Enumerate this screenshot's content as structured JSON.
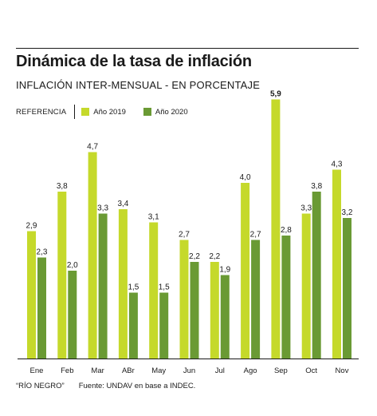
{
  "title": "Dinámica de la tasa de inflación",
  "subtitle": "INFLACIÓN INTER-MENSUAL - EN PORCENTAJE",
  "legend": {
    "reference_label": "REFERENCIA",
    "items": [
      {
        "label": "Año 2019",
        "color": "#c5d92b"
      },
      {
        "label": "Año 2020",
        "color": "#6a9a34"
      }
    ]
  },
  "footer": {
    "credit": "“RÍO NEGRO”",
    "source": "Fuente: UNDAV en base a INDEC."
  },
  "chart_data": {
    "type": "bar",
    "categories": [
      "Ene",
      "Feb",
      "Mar",
      "ABr",
      "May",
      "Jun",
      "Jul",
      "Ago",
      "Sep",
      "Oct",
      "Nov"
    ],
    "series": [
      {
        "name": "Año 2019",
        "color": "#c5d92b",
        "values": [
          2.9,
          3.8,
          4.7,
          3.4,
          3.1,
          2.7,
          2.2,
          4.0,
          5.9,
          3.3,
          4.3
        ],
        "labels": [
          "2,9",
          "3,8",
          "4,7",
          "3,4",
          "3,1",
          "2,7",
          "2,2",
          "4,0",
          "5,9",
          "3,3",
          "4,3"
        ]
      },
      {
        "name": "Año 2020",
        "color": "#6a9a34",
        "values": [
          2.3,
          2.0,
          3.3,
          1.5,
          1.5,
          2.2,
          1.9,
          2.7,
          2.8,
          3.8,
          3.2
        ],
        "labels": [
          "2,3",
          "2,0",
          "3,3",
          "1,5",
          "1,5",
          "2,2",
          "1,9",
          "2,7",
          "2,8",
          "3,8",
          "3,2"
        ]
      }
    ],
    "highlight": {
      "series": 0,
      "index": 8
    },
    "ylim": [
      0,
      6
    ],
    "grid": false,
    "legend_position": "top-left"
  }
}
